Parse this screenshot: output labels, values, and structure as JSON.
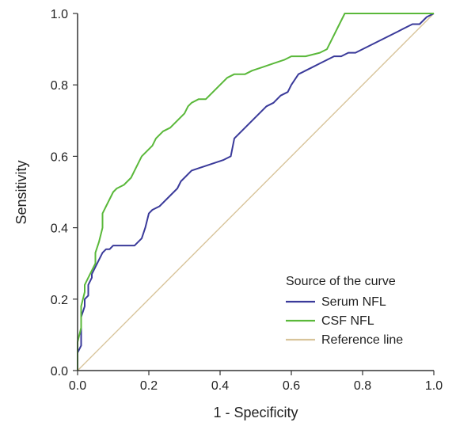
{
  "chart_data": {
    "type": "line",
    "xlabel": "1 - Specificity",
    "ylabel": "Sensitivity",
    "xlim": [
      0,
      1
    ],
    "ylim": [
      0,
      1
    ],
    "x_ticks": [
      "0.0",
      "0.2",
      "0.4",
      "0.6",
      "0.8",
      "1.0"
    ],
    "y_ticks": [
      "0.0",
      "0.2",
      "0.4",
      "0.6",
      "0.8",
      "1.0"
    ],
    "grid": false,
    "legend_title": "Source of the curve",
    "legend_position": "bottom-right",
    "series": [
      {
        "name": "Serum NFL",
        "color": "#3a3a9a",
        "x": [
          0,
          0,
          0.01,
          0.01,
          0.02,
          0.02,
          0.03,
          0.03,
          0.04,
          0.04,
          0.05,
          0.06,
          0.07,
          0.08,
          0.09,
          0.1,
          0.12,
          0.14,
          0.16,
          0.18,
          0.19,
          0.2,
          0.21,
          0.23,
          0.25,
          0.27,
          0.28,
          0.29,
          0.3,
          0.32,
          0.35,
          0.38,
          0.41,
          0.43,
          0.44,
          0.45,
          0.47,
          0.49,
          0.51,
          0.53,
          0.55,
          0.57,
          0.59,
          0.6,
          0.62,
          0.64,
          0.66,
          0.68,
          0.7,
          0.72,
          0.74,
          0.76,
          0.78,
          0.8,
          0.82,
          0.84,
          0.86,
          0.88,
          0.9,
          0.92,
          0.94,
          0.96,
          0.98,
          1.0
        ],
        "y": [
          0,
          0.05,
          0.07,
          0.15,
          0.18,
          0.2,
          0.21,
          0.24,
          0.26,
          0.27,
          0.29,
          0.31,
          0.33,
          0.34,
          0.34,
          0.35,
          0.35,
          0.35,
          0.35,
          0.37,
          0.4,
          0.44,
          0.45,
          0.46,
          0.48,
          0.5,
          0.51,
          0.53,
          0.54,
          0.56,
          0.57,
          0.58,
          0.59,
          0.6,
          0.65,
          0.66,
          0.68,
          0.7,
          0.72,
          0.74,
          0.75,
          0.77,
          0.78,
          0.8,
          0.83,
          0.84,
          0.85,
          0.86,
          0.87,
          0.88,
          0.88,
          0.89,
          0.89,
          0.9,
          0.91,
          0.92,
          0.93,
          0.94,
          0.95,
          0.96,
          0.97,
          0.97,
          0.99,
          1.0
        ]
      },
      {
        "name": "CSF NFL",
        "color": "#5ab83a",
        "x": [
          0,
          0,
          0.01,
          0.01,
          0.02,
          0.02,
          0.03,
          0.04,
          0.05,
          0.05,
          0.06,
          0.07,
          0.07,
          0.08,
          0.09,
          0.1,
          0.11,
          0.13,
          0.15,
          0.16,
          0.17,
          0.18,
          0.19,
          0.21,
          0.22,
          0.24,
          0.26,
          0.28,
          0.3,
          0.31,
          0.32,
          0.34,
          0.36,
          0.37,
          0.38,
          0.4,
          0.41,
          0.42,
          0.44,
          0.47,
          0.49,
          0.52,
          0.55,
          0.58,
          0.6,
          0.64,
          0.68,
          0.7,
          0.71,
          0.72,
          0.73,
          0.74,
          0.75,
          0.78,
          0.85,
          0.9,
          0.95,
          1.0
        ],
        "y": [
          0,
          0.08,
          0.12,
          0.18,
          0.22,
          0.24,
          0.26,
          0.28,
          0.3,
          0.33,
          0.36,
          0.4,
          0.44,
          0.46,
          0.48,
          0.5,
          0.51,
          0.52,
          0.54,
          0.56,
          0.58,
          0.6,
          0.61,
          0.63,
          0.65,
          0.67,
          0.68,
          0.7,
          0.72,
          0.74,
          0.75,
          0.76,
          0.76,
          0.77,
          0.78,
          0.8,
          0.81,
          0.82,
          0.83,
          0.83,
          0.84,
          0.85,
          0.86,
          0.87,
          0.88,
          0.88,
          0.89,
          0.9,
          0.92,
          0.94,
          0.96,
          0.98,
          1.0,
          1.0,
          1.0,
          1.0,
          1.0,
          1.0
        ]
      },
      {
        "name": "Reference line",
        "color": "#d8c49a",
        "x": [
          0,
          1
        ],
        "y": [
          0,
          1
        ]
      }
    ]
  }
}
